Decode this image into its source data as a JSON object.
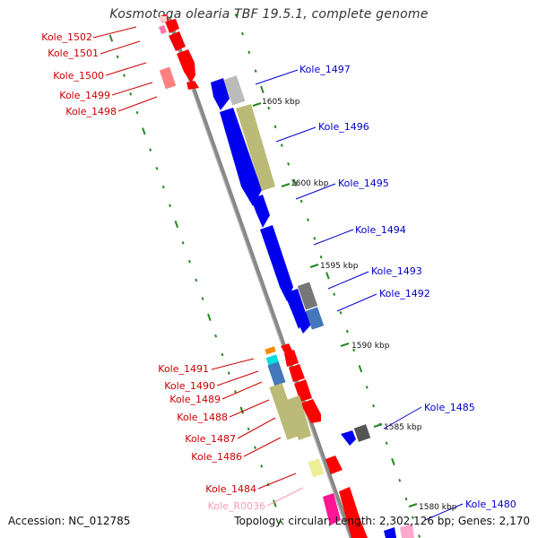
{
  "title": "Kosmotoga olearia TBF 19.5.1, complete genome",
  "footer": {
    "accession": "Accession: NC_012785",
    "stats": "Topology: circular; Length: 2,302,126 bp; Genes: 2,170"
  },
  "colors": {
    "plus_strand_label": "#cc0000",
    "minus_strand_label": "#0000cc",
    "rrna_label": "#ff99bb",
    "backbone": "#888888",
    "tick_mark": "#228822"
  },
  "scale_labels": [
    "1605 kbp",
    "1600 kbp",
    "1595 kbp",
    "1590 kbp",
    "1585 kbp",
    "1580 kbp"
  ],
  "genes_left": [
    "Kole_1502",
    "Kole_1501",
    "Kole_1500",
    "Kole_1499",
    "Kole_1498",
    "Kole_1491",
    "Kole_1490",
    "Kole_1489",
    "Kole_1488",
    "Kole_1487",
    "Kole_1486",
    "Kole_1484"
  ],
  "rna_left": [
    "Kole_R0036"
  ],
  "genes_right": [
    "Kole_1497",
    "Kole_1496",
    "Kole_1495",
    "Kole_1494",
    "Kole_1493",
    "Kole_1492",
    "Kole_1485",
    "Kole_1480"
  ]
}
